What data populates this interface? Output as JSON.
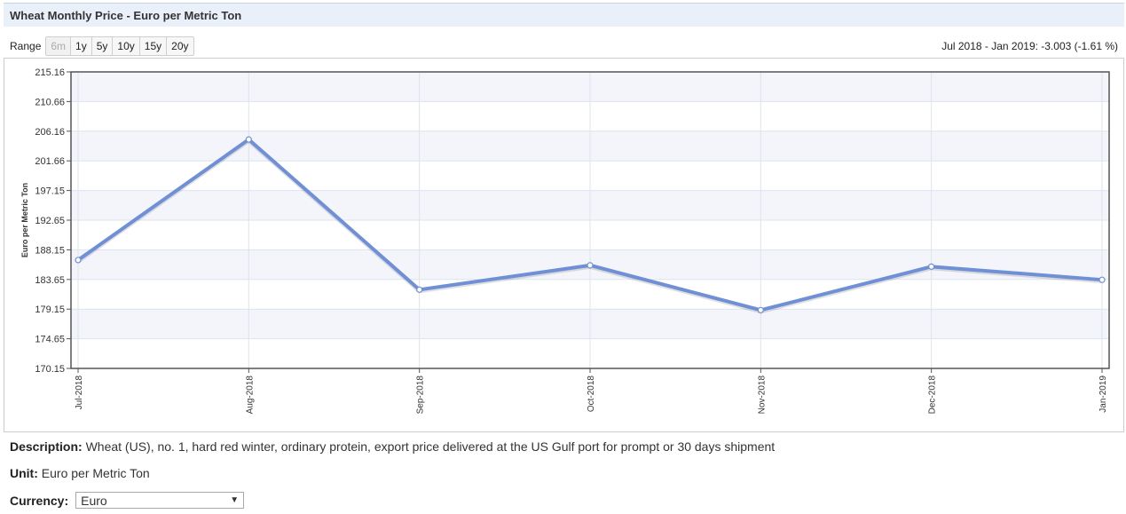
{
  "header": {
    "title": "Wheat Monthly Price - Euro per Metric Ton"
  },
  "range": {
    "label": "Range",
    "options": [
      "6m",
      "1y",
      "5y",
      "10y",
      "15y",
      "20y"
    ],
    "disabled": "6m"
  },
  "change_text": "Jul 2018 - Jan 2019: -3.003 (-1.61 %)",
  "chart_data": {
    "type": "line",
    "ylabel": "Euro per Metric Ton",
    "xlabel": "",
    "categories": [
      "Jul-2018",
      "Aug-2018",
      "Sep-2018",
      "Oct-2018",
      "Nov-2018",
      "Dec-2018",
      "Jan-2019"
    ],
    "series": [
      {
        "values": [
          186.6,
          204.9,
          182.1,
          185.8,
          179.0,
          185.6,
          183.6
        ]
      }
    ],
    "ylim": [
      170.15,
      215.16
    ],
    "yticks": [
      "170.15",
      "174.65",
      "179.15",
      "183.65",
      "188.15",
      "192.65",
      "197.15",
      "201.66",
      "206.16",
      "210.66",
      "215.16"
    ],
    "grid": true,
    "line_color": "#6f8fd6"
  },
  "description": {
    "label": "Description:",
    "text": "Wheat (US), no. 1, hard red winter, ordinary protein, export price delivered at the US Gulf port for prompt or 30 days shipment"
  },
  "unit": {
    "label": "Unit:",
    "text": "Euro per Metric Ton"
  },
  "currency": {
    "label": "Currency:",
    "selected": "Euro"
  }
}
